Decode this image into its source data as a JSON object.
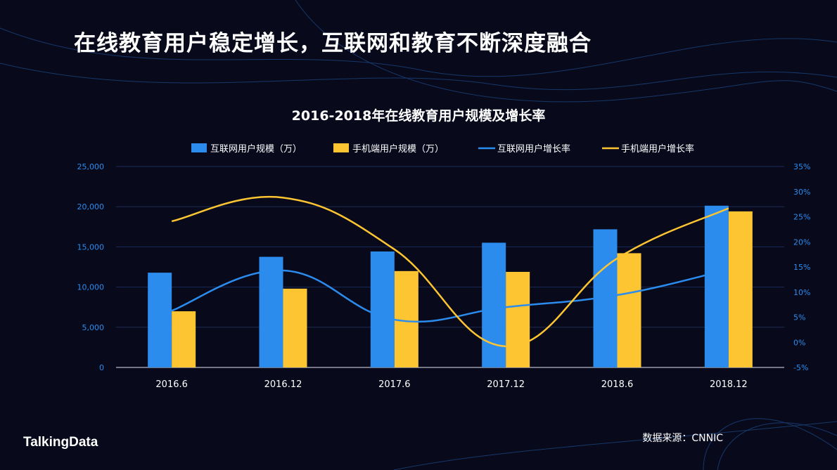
{
  "page_title": "在线教育用户稳定增长，互联网和教育不断深度融合",
  "source": "数据来源：CNNIC",
  "logo": "TalkingData",
  "colors": {
    "background": "#080a1c",
    "internet": "#2b8ced",
    "mobile": "#fdc531",
    "axis_text": "#2b8ced"
  },
  "chart_data": {
    "type": "bar+line",
    "title": "2016-2018年在线教育用户规模及增长率",
    "categories": [
      "2016.6",
      "2016.12",
      "2017.6",
      "2017.12",
      "2018.6",
      "2018.12"
    ],
    "legend_position": "top",
    "grid": true,
    "y_left": {
      "range": [
        0,
        25000
      ],
      "ticks": [
        "0",
        "5,000",
        "10,000",
        "15,000",
        "20,000",
        "25,000"
      ]
    },
    "y_right": {
      "range": [
        -5,
        35
      ],
      "ticks": [
        "-5%",
        "0%",
        "5%",
        "10%",
        "15%",
        "20%",
        "25%",
        "30%",
        "35%"
      ]
    },
    "series": [
      {
        "name": "互联网用户规模（万）",
        "type": "bar",
        "axis": "left",
        "color": "#2b8ced",
        "values": [
          11789,
          13764,
          14426,
          15518,
          17186,
          20123
        ]
      },
      {
        "name": "手机端用户规模（万）",
        "type": "bar",
        "axis": "left",
        "color": "#fdc531",
        "values": [
          6987,
          9798,
          11990,
          11890,
          14212,
          19416
        ]
      },
      {
        "name": "互联网用户增长率",
        "type": "line",
        "axis": "right",
        "color": "#2b8ced",
        "values": [
          6.3,
          14.3,
          4.5,
          7.0,
          9.4,
          14.5
        ]
      },
      {
        "name": "手机端用户增长率",
        "type": "line",
        "axis": "right",
        "color": "#fdc531",
        "values": [
          24.1,
          28.8,
          18.5,
          -0.8,
          16.7,
          26.7
        ]
      }
    ]
  }
}
